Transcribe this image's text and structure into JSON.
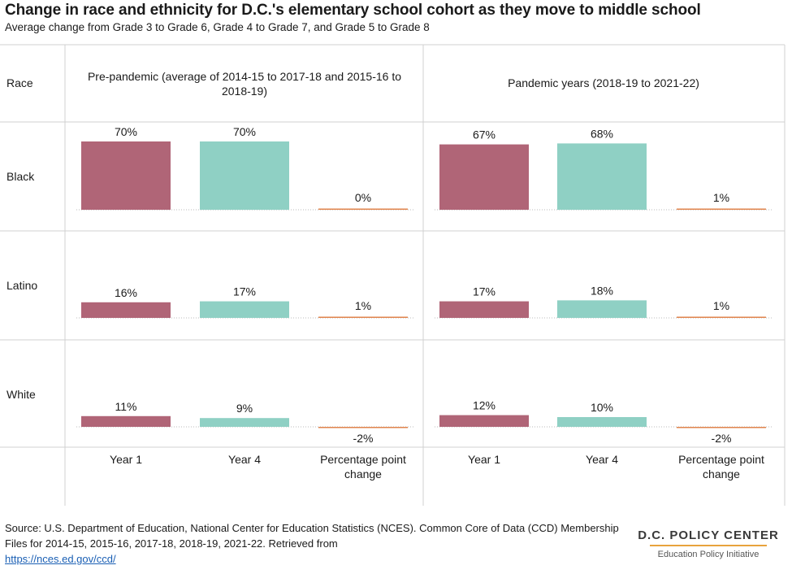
{
  "title": "Change in race and ethnicity for D.C.'s elementary school cohort as they move to middle school",
  "subtitle": "Average change from Grade 3 to Grade 6, Grade 4 to Grade 7, and Grade 5 to Grade 8",
  "source": {
    "text": "Source: U.S. Department of Education, National Center for Education Statistics (NCES). Common Core of Data (CCD) Membership Files for 2014-15, 2015-16, 2017-18, 2018-19, 2021-22. Retrieved from",
    "link": "https://nces.ed.gov/ccd/"
  },
  "logo": {
    "main": "D.C. POLICY CENTER",
    "sub": "Education Policy Initiative"
  },
  "chart_data": {
    "type": "bar",
    "row_header": "Race",
    "rows": [
      "Black",
      "Latino",
      "White"
    ],
    "panels": [
      "Pre-pandemic (average of 2014-15 to 2017-18 and 2015-16 to 2018-19)",
      "Pandemic years (2018-19 to 2021-22)"
    ],
    "categories": [
      "Year 1",
      "Year 4",
      "Percentage point change"
    ],
    "values": [
      [
        [
          70,
          70,
          0
        ],
        [
          67,
          68,
          1
        ]
      ],
      [
        [
          16,
          17,
          1
        ],
        [
          17,
          18,
          1
        ]
      ],
      [
        [
          11,
          9,
          -2
        ],
        [
          12,
          10,
          -2
        ]
      ]
    ],
    "labels": [
      [
        [
          "70%",
          "70%",
          "0%"
        ],
        [
          "67%",
          "68%",
          "1%"
        ]
      ],
      [
        [
          "16%",
          "17%",
          "1%"
        ],
        [
          "17%",
          "18%",
          "1%"
        ]
      ],
      [
        [
          "11%",
          "9%",
          "-2%"
        ],
        [
          "12%",
          "10%",
          "-2%"
        ]
      ]
    ],
    "colors": [
      "#b06577",
      "#8fd0c4",
      "#e0844d"
    ],
    "grid": false
  }
}
